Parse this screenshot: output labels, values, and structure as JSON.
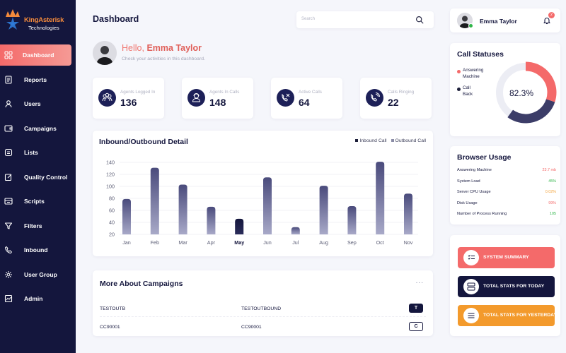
{
  "brand": {
    "name_line1": "KingAsterisk",
    "name_line2": "Technologies"
  },
  "sidebar": {
    "items": [
      {
        "label": "Dashboard",
        "icon": "dashboard-icon",
        "active": true
      },
      {
        "label": "Reports",
        "icon": "reports-icon"
      },
      {
        "label": "Users",
        "icon": "users-icon"
      },
      {
        "label": "Campaigns",
        "icon": "campaigns-icon"
      },
      {
        "label": "Lists",
        "icon": "lists-icon"
      },
      {
        "label": "Quality Control",
        "icon": "quality-control-icon"
      },
      {
        "label": "Scripts",
        "icon": "scripts-icon"
      },
      {
        "label": "Filters",
        "icon": "filter-icon"
      },
      {
        "label": "Inbound",
        "icon": "phone-icon"
      },
      {
        "label": "User Group",
        "icon": "user-group-icon"
      },
      {
        "label": "Admin",
        "icon": "admin-chart-icon"
      }
    ]
  },
  "header": {
    "title": "Dashboard",
    "search_placeholder": "Search"
  },
  "greeting": {
    "hello": "Hello,",
    "name": "Emma Taylor",
    "subtitle": "Check your activities in this dashboard."
  },
  "stats": [
    {
      "label": "Agents Logged In",
      "value": "136",
      "icon": "agents-logged-icon"
    },
    {
      "label": "Agents In Calls",
      "value": "148",
      "icon": "agent-call-icon"
    },
    {
      "label": "Active Calls",
      "value": "64",
      "icon": "active-calls-icon"
    },
    {
      "label": "Calls Ringing",
      "value": "22",
      "icon": "calls-ringing-icon"
    }
  ],
  "chart_data": {
    "type": "bar",
    "title": "Inbound/Outbound Detail",
    "legend": [
      "Inbound Call",
      "Outbound Call"
    ],
    "categories": [
      "Jan",
      "Feb",
      "Mar",
      "Apr",
      "May",
      "Jun",
      "Jul",
      "Aug",
      "Sep",
      "Oct",
      "Nov"
    ],
    "values": [
      79,
      131,
      103,
      66,
      46,
      115,
      32,
      101,
      67,
      141,
      88
    ],
    "highlighted": "May",
    "yticks": [
      20,
      40,
      60,
      80,
      100,
      120,
      140
    ],
    "ylim": [
      20,
      150
    ],
    "colors": {
      "bar_top": "#4a4b7c",
      "bar_bottom": "#a8a9c8",
      "highlight_top": "#14163d",
      "highlight_bottom": "#2a2c5a"
    }
  },
  "campaigns": {
    "title": "More About Campaigns",
    "more": "...",
    "rows": [
      {
        "col1": "TESTOUTB",
        "col2": "TESTOUTBOUND",
        "badge": "T",
        "style": "dark"
      },
      {
        "col1": "CC90001",
        "col2": "CC90001",
        "badge": "C",
        "style": "light"
      }
    ]
  },
  "user": {
    "name": "Emma Taylor",
    "notifications": "2"
  },
  "call_statuses": {
    "title": "Call Statuses",
    "legend": [
      {
        "label": "Answering Machine",
        "color": "#f46a6a"
      },
      {
        "label": "Call Back",
        "color": "#1d1f3a"
      }
    ],
    "percent_label": "82.3%",
    "percent": 82.3,
    "colors": {
      "primary": "#f46a6a",
      "secondary": "#3c3d68",
      "track": "#ecedf4"
    }
  },
  "browser_usage": {
    "title": "Browser Usage",
    "rows": [
      {
        "label": "Answering Machine",
        "value": "23.7 mb",
        "color": "#f46a6a"
      },
      {
        "label": "System Load",
        "value": "45%",
        "color": "#2fb548"
      },
      {
        "label": "Server CPU Usage",
        "value": "0.02%",
        "color": "#f3a43a"
      },
      {
        "label": "Disk Usage",
        "value": "99%",
        "color": "#f46a6a"
      },
      {
        "label": "Number of Process Running",
        "value": "105",
        "color": "#2fb548"
      }
    ]
  },
  "actions": [
    {
      "label": "SYSTEM SUMMARY",
      "icon": "checklist-icon",
      "color": "#f46a6a"
    },
    {
      "label": "TOTAL STATS FOR TODAY",
      "icon": "server-icon",
      "color": "#14163d"
    },
    {
      "label": "TOTAL STATS FOR YESTERDAY",
      "icon": "menu-lines-icon",
      "color": "#f39a2c"
    }
  ]
}
